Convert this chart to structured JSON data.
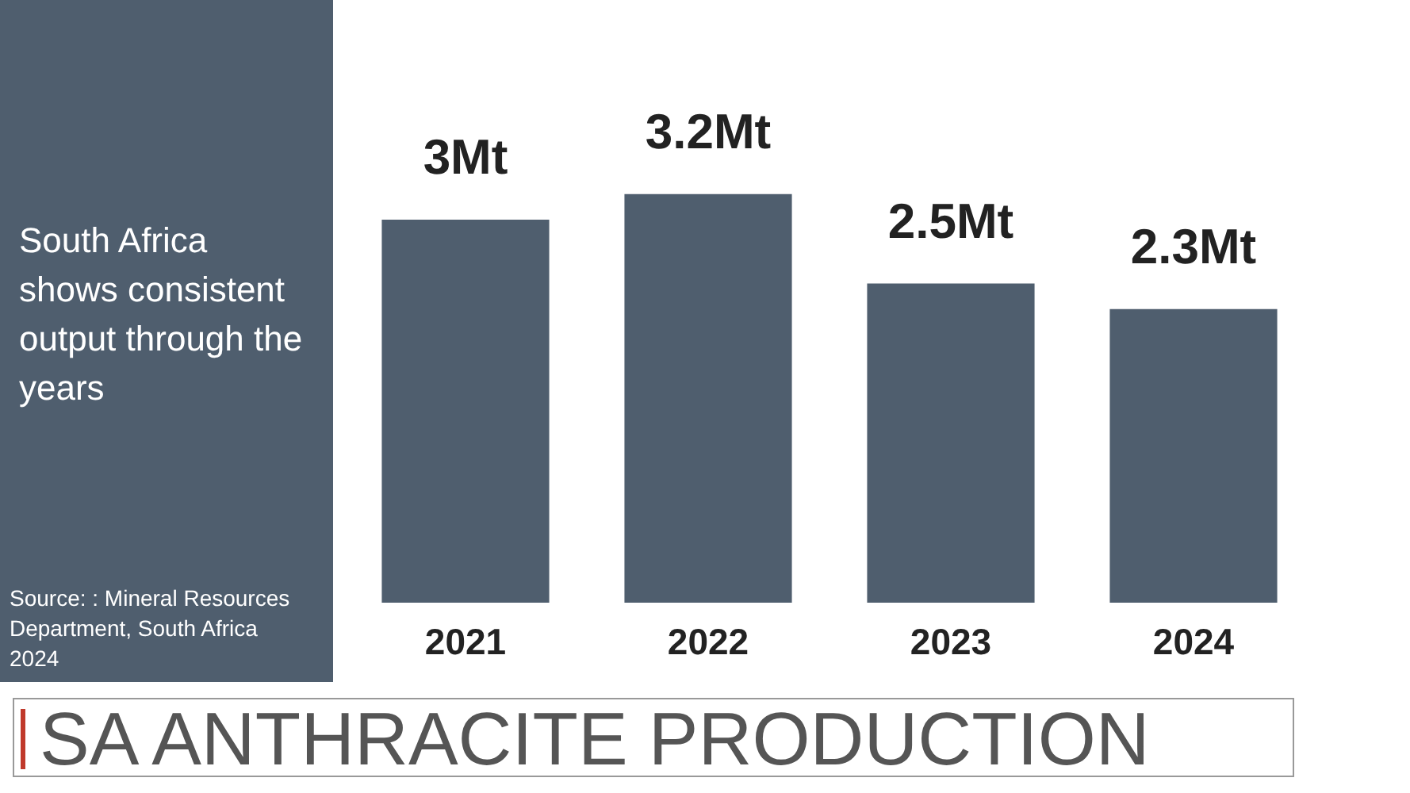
{
  "chart_data": {
    "type": "bar",
    "title": "SA ANTHRACITE PRODUCTION",
    "subtitle": "South Africa shows consistent output through the years",
    "annotations": [
      "Source: : Mineral Resources Department, South Africa 2024"
    ],
    "categories": [
      "2021",
      "2022",
      "2023",
      "2024"
    ],
    "values": [
      3,
      3.2,
      2.5,
      2.3
    ],
    "value_labels": [
      "3Mt",
      "3.2Mt",
      "2.5Mt",
      "2.3Mt"
    ],
    "color": "#4f5e6e"
  }
}
